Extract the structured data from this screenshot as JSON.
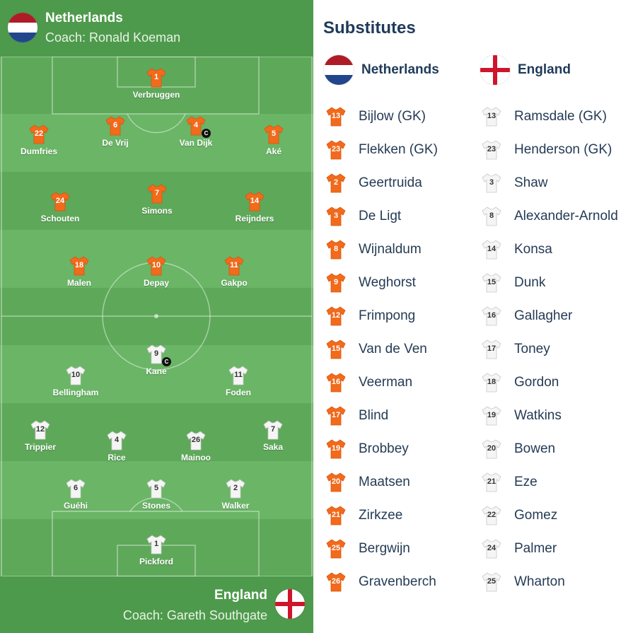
{
  "home": {
    "name": "Netherlands",
    "coach": "Coach: Ronald Koeman",
    "flag": "netherlands-flag",
    "kit_color": "#f26a1b"
  },
  "away": {
    "name": "England",
    "coach": "Coach: Gareth Southgate",
    "flag": "england-flag",
    "kit_color": "#f5f5f5"
  },
  "captain_mark": "C",
  "home_lineup": [
    {
      "num": "1",
      "name": "Verbruggen"
    },
    {
      "num": "22",
      "name": "Dumfries"
    },
    {
      "num": "6",
      "name": "De Vrij"
    },
    {
      "num": "4",
      "name": "Van Dijk",
      "captain": true
    },
    {
      "num": "5",
      "name": "Aké"
    },
    {
      "num": "24",
      "name": "Schouten"
    },
    {
      "num": "7",
      "name": "Simons"
    },
    {
      "num": "14",
      "name": "Reijnders"
    },
    {
      "num": "18",
      "name": "Malen"
    },
    {
      "num": "10",
      "name": "Depay"
    },
    {
      "num": "11",
      "name": "Gakpo"
    }
  ],
  "away_lineup": [
    {
      "num": "9",
      "name": "Kane",
      "captain": true
    },
    {
      "num": "10",
      "name": "Bellingham"
    },
    {
      "num": "11",
      "name": "Foden"
    },
    {
      "num": "12",
      "name": "Trippier"
    },
    {
      "num": "4",
      "name": "Rice"
    },
    {
      "num": "26",
      "name": "Mainoo"
    },
    {
      "num": "7",
      "name": "Saka"
    },
    {
      "num": "6",
      "name": "Guéhi"
    },
    {
      "num": "5",
      "name": "Stones"
    },
    {
      "num": "2",
      "name": "Walker"
    },
    {
      "num": "1",
      "name": "Pickford"
    }
  ],
  "substitutes": {
    "title": "Substitutes",
    "home_name": "Netherlands",
    "away_name": "England",
    "home": [
      {
        "num": "13",
        "name": "Bijlow (GK)"
      },
      {
        "num": "23",
        "name": "Flekken (GK)"
      },
      {
        "num": "2",
        "name": "Geertruida"
      },
      {
        "num": "3",
        "name": "De Ligt"
      },
      {
        "num": "8",
        "name": "Wijnaldum"
      },
      {
        "num": "9",
        "name": "Weghorst"
      },
      {
        "num": "12",
        "name": "Frimpong"
      },
      {
        "num": "15",
        "name": "Van de Ven"
      },
      {
        "num": "16",
        "name": "Veerman"
      },
      {
        "num": "17",
        "name": "Blind"
      },
      {
        "num": "19",
        "name": "Brobbey"
      },
      {
        "num": "20",
        "name": "Maatsen"
      },
      {
        "num": "21",
        "name": "Zirkzee"
      },
      {
        "num": "25",
        "name": "Bergwijn"
      },
      {
        "num": "26",
        "name": "Gravenberch"
      }
    ],
    "away": [
      {
        "num": "13",
        "name": "Ramsdale (GK)"
      },
      {
        "num": "23",
        "name": "Henderson (GK)"
      },
      {
        "num": "3",
        "name": "Shaw"
      },
      {
        "num": "8",
        "name": "Alexander-Arnold"
      },
      {
        "num": "14",
        "name": "Konsa"
      },
      {
        "num": "15",
        "name": "Dunk"
      },
      {
        "num": "16",
        "name": "Gallagher"
      },
      {
        "num": "17",
        "name": "Toney"
      },
      {
        "num": "18",
        "name": "Gordon"
      },
      {
        "num": "19",
        "name": "Watkins"
      },
      {
        "num": "20",
        "name": "Bowen"
      },
      {
        "num": "21",
        "name": "Eze"
      },
      {
        "num": "22",
        "name": "Gomez"
      },
      {
        "num": "24",
        "name": "Palmer"
      },
      {
        "num": "25",
        "name": "Wharton"
      }
    ]
  }
}
